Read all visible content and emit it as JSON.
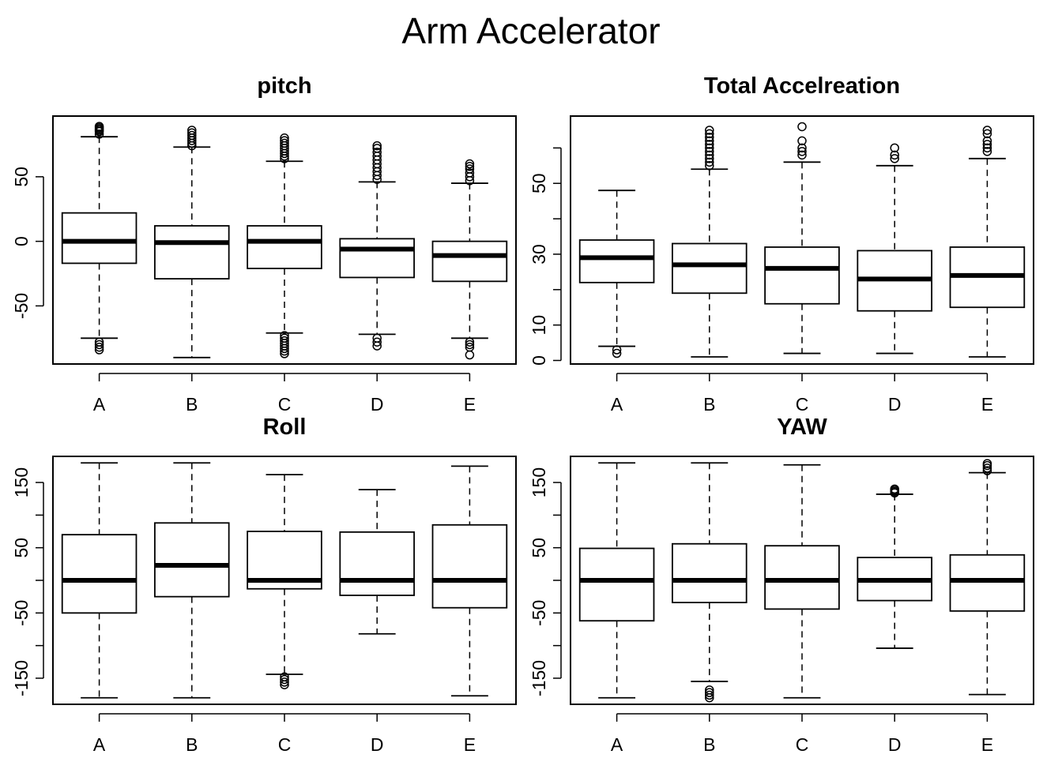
{
  "title": "Arm Accelerator",
  "colors": {
    "ink": "#000000",
    "background": "#ffffff"
  },
  "chart_data": [
    {
      "type": "boxplot",
      "title": "pitch",
      "categories": [
        "A",
        "B",
        "C",
        "D",
        "E"
      ],
      "ylim": [
        -95,
        97
      ],
      "yticks": [
        -50,
        0,
        50
      ],
      "yminor": [],
      "boxes": [
        {
          "whisker_low": -75,
          "q1": -17,
          "median": 0,
          "q3": 22,
          "whisker_high": 81,
          "outliers_high": [
            83,
            85,
            86,
            87,
            88,
            89
          ],
          "outliers_low": [
            -78,
            -80,
            -82,
            -84
          ]
        },
        {
          "whisker_low": -90,
          "q1": -29,
          "median": -1,
          "q3": 12,
          "whisker_high": 73,
          "outliers_high": [
            74,
            76,
            78,
            80,
            82,
            84,
            86
          ],
          "outliers_low": []
        },
        {
          "whisker_low": -71,
          "q1": -21,
          "median": 0,
          "q3": 12,
          "whisker_high": 62,
          "outliers_high": [
            64,
            66,
            68,
            70,
            72,
            74,
            76,
            78,
            80
          ],
          "outliers_low": [
            -73,
            -75,
            -77,
            -79,
            -81,
            -83,
            -85,
            -87
          ]
        },
        {
          "whisker_low": -72,
          "q1": -28,
          "median": -6,
          "q3": 2,
          "whisker_high": 46,
          "outliers_high": [
            48,
            51,
            54,
            57,
            60,
            63,
            66,
            69,
            72,
            74
          ],
          "outliers_low": [
            -75,
            -78,
            -81
          ]
        },
        {
          "whisker_low": -75,
          "q1": -31,
          "median": -11,
          "q3": 0,
          "whisker_high": 45,
          "outliers_high": [
            47,
            50,
            53,
            56,
            58,
            60
          ],
          "outliers_low": [
            -78,
            -80,
            -82,
            -88
          ]
        }
      ]
    },
    {
      "type": "boxplot",
      "title": "Total Accelreation",
      "categories": [
        "A",
        "B",
        "C",
        "D",
        "E"
      ],
      "ylim": [
        -1,
        69
      ],
      "yticks": [
        0,
        10,
        30,
        50
      ],
      "yminor": [
        20,
        40,
        60
      ],
      "boxes": [
        {
          "whisker_low": 4,
          "q1": 22,
          "median": 29,
          "q3": 34,
          "whisker_high": 48,
          "outliers_high": [],
          "outliers_low": [
            2,
            3
          ]
        },
        {
          "whisker_low": 1,
          "q1": 19,
          "median": 27,
          "q3": 33,
          "whisker_high": 54,
          "outliers_high": [
            55,
            56,
            57,
            58,
            59,
            60,
            61,
            62,
            63,
            64,
            65
          ],
          "outliers_low": []
        },
        {
          "whisker_low": 2,
          "q1": 16,
          "median": 26,
          "q3": 32,
          "whisker_high": 56,
          "outliers_high": [
            58,
            59,
            60,
            62,
            66
          ],
          "outliers_low": []
        },
        {
          "whisker_low": 2,
          "q1": 14,
          "median": 23,
          "q3": 31,
          "whisker_high": 55,
          "outliers_high": [
            57,
            58,
            60
          ],
          "outliers_low": []
        },
        {
          "whisker_low": 1,
          "q1": 15,
          "median": 24,
          "q3": 32,
          "whisker_high": 57,
          "outliers_high": [
            59,
            60,
            61,
            62,
            64,
            65
          ],
          "outliers_low": []
        }
      ]
    },
    {
      "type": "boxplot",
      "title": "Roll",
      "categories": [
        "A",
        "B",
        "C",
        "D",
        "E"
      ],
      "ylim": [
        -190,
        190
      ],
      "yticks": [
        -150,
        -50,
        50,
        150
      ],
      "yminor": [
        -100,
        0,
        100
      ],
      "boxes": [
        {
          "whisker_low": -180,
          "q1": -50,
          "median": 0,
          "q3": 70,
          "whisker_high": 180,
          "outliers_high": [],
          "outliers_low": []
        },
        {
          "whisker_low": -180,
          "q1": -25,
          "median": 23,
          "q3": 88,
          "whisker_high": 180,
          "outliers_high": [],
          "outliers_low": []
        },
        {
          "whisker_low": -144,
          "q1": -13,
          "median": 0,
          "q3": 75,
          "whisker_high": 162,
          "outliers_high": [],
          "outliers_low": [
            -148,
            -152,
            -156,
            -160
          ]
        },
        {
          "whisker_low": -82,
          "q1": -23,
          "median": 0,
          "q3": 74,
          "whisker_high": 139,
          "outliers_high": [],
          "outliers_low": []
        },
        {
          "whisker_low": -177,
          "q1": -42,
          "median": 0,
          "q3": 85,
          "whisker_high": 175,
          "outliers_high": [],
          "outliers_low": []
        }
      ]
    },
    {
      "type": "boxplot",
      "title": "YAW",
      "categories": [
        "A",
        "B",
        "C",
        "D",
        "E"
      ],
      "ylim": [
        -190,
        190
      ],
      "yticks": [
        -150,
        -50,
        50,
        150
      ],
      "yminor": [
        -100,
        0,
        100
      ],
      "boxes": [
        {
          "whisker_low": -180,
          "q1": -62,
          "median": 0,
          "q3": 49,
          "whisker_high": 180,
          "outliers_high": [],
          "outliers_low": []
        },
        {
          "whisker_low": -155,
          "q1": -34,
          "median": 0,
          "q3": 56,
          "whisker_high": 180,
          "outliers_high": [],
          "outliers_low": [
            -168,
            -172,
            -176,
            -180
          ]
        },
        {
          "whisker_low": -180,
          "q1": -44,
          "median": 0,
          "q3": 53,
          "whisker_high": 177,
          "outliers_high": [],
          "outliers_low": []
        },
        {
          "whisker_low": -104,
          "q1": -31,
          "median": 0,
          "q3": 35,
          "whisker_high": 132,
          "outliers_high": [
            134,
            136,
            138,
            140
          ],
          "outliers_low": []
        },
        {
          "whisker_low": -175,
          "q1": -47,
          "median": 0,
          "q3": 39,
          "whisker_high": 165,
          "outliers_high": [
            168,
            172,
            176,
            179
          ],
          "outliers_low": []
        }
      ]
    }
  ]
}
